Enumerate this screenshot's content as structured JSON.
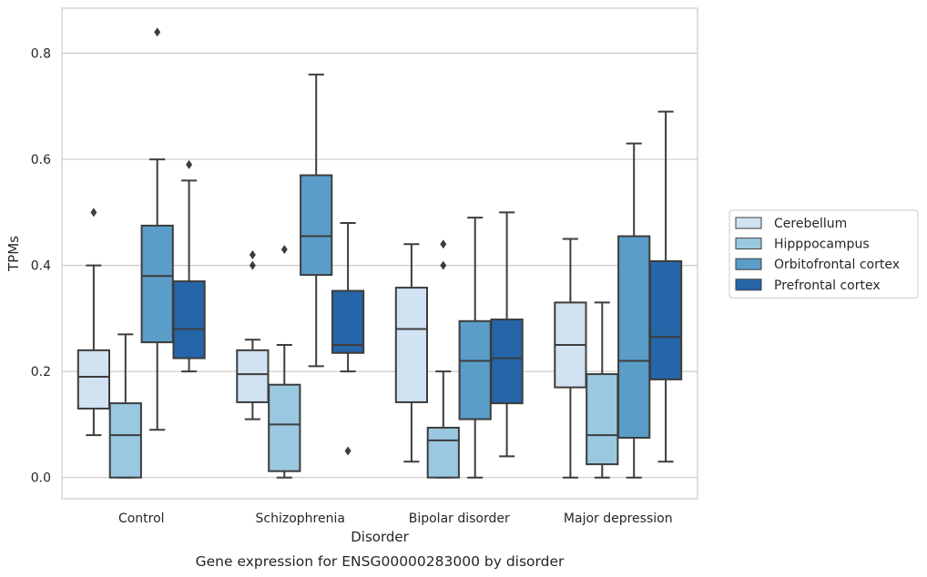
{
  "chart_data": {
    "type": "box",
    "title": "",
    "caption": "Gene expression for ENSG00000283000 by disorder",
    "xlabel": "Disorder",
    "ylabel": "TPMs",
    "ylim": [
      -0.04,
      0.885
    ],
    "yticks": [
      0.0,
      0.2,
      0.4,
      0.6,
      0.8
    ],
    "ytick_labels": [
      "0.0",
      "0.2",
      "0.4",
      "0.6",
      "0.8"
    ],
    "grid": "horizontal",
    "legend_position": "right",
    "categories": [
      "Control",
      "Schizophrenia",
      "Bipolar disorder",
      "Major depression"
    ],
    "series": [
      {
        "name": "Cerebellum",
        "color": "#d1e2f2",
        "boxes": [
          {
            "whisker_low": 0.08,
            "q1": 0.13,
            "median": 0.19,
            "q3": 0.24,
            "whisker_high": 0.4,
            "outliers": [
              0.5
            ]
          },
          {
            "whisker_low": 0.11,
            "q1": 0.142,
            "median": 0.195,
            "q3": 0.24,
            "whisker_high": 0.26,
            "outliers": [
              0.4,
              0.42
            ]
          },
          {
            "whisker_low": 0.03,
            "q1": 0.142,
            "median": 0.28,
            "q3": 0.358,
            "whisker_high": 0.44,
            "outliers": []
          },
          {
            "whisker_low": 0.0,
            "q1": 0.17,
            "median": 0.25,
            "q3": 0.33,
            "whisker_high": 0.45,
            "outliers": []
          }
        ]
      },
      {
        "name": "Hipppocampus",
        "color": "#9ac8e0",
        "boxes": [
          {
            "whisker_low": 0.0,
            "q1": 0.0,
            "median": 0.08,
            "q3": 0.14,
            "whisker_high": 0.27,
            "outliers": []
          },
          {
            "whisker_low": 0.0,
            "q1": 0.012,
            "median": 0.1,
            "q3": 0.175,
            "whisker_high": 0.25,
            "outliers": [
              0.43
            ]
          },
          {
            "whisker_low": 0.0,
            "q1": 0.0,
            "median": 0.07,
            "q3": 0.094,
            "whisker_high": 0.2,
            "outliers": [
              0.4,
              0.44
            ]
          },
          {
            "whisker_low": 0.0,
            "q1": 0.025,
            "median": 0.08,
            "q3": 0.195,
            "whisker_high": 0.33,
            "outliers": []
          }
        ]
      },
      {
        "name": "Orbitofrontal cortex",
        "color": "#5a9dc8",
        "boxes": [
          {
            "whisker_low": 0.09,
            "q1": 0.255,
            "median": 0.38,
            "q3": 0.475,
            "whisker_high": 0.6,
            "outliers": [
              0.84
            ]
          },
          {
            "whisker_low": 0.21,
            "q1": 0.382,
            "median": 0.455,
            "q3": 0.57,
            "whisker_high": 0.76,
            "outliers": []
          },
          {
            "whisker_low": 0.0,
            "q1": 0.11,
            "median": 0.22,
            "q3": 0.295,
            "whisker_high": 0.49,
            "outliers": []
          },
          {
            "whisker_low": 0.0,
            "q1": 0.075,
            "median": 0.22,
            "q3": 0.455,
            "whisker_high": 0.63,
            "outliers": []
          }
        ]
      },
      {
        "name": "Prefrontal cortex",
        "color": "#2565a8",
        "boxes": [
          {
            "whisker_low": 0.2,
            "q1": 0.225,
            "median": 0.28,
            "q3": 0.37,
            "whisker_high": 0.56,
            "outliers": [
              0.59
            ]
          },
          {
            "whisker_low": 0.2,
            "q1": 0.235,
            "median": 0.25,
            "q3": 0.352,
            "whisker_high": 0.48,
            "outliers": [
              0.05
            ]
          },
          {
            "whisker_low": 0.04,
            "q1": 0.14,
            "median": 0.225,
            "q3": 0.298,
            "whisker_high": 0.5,
            "outliers": []
          },
          {
            "whisker_low": 0.03,
            "q1": 0.185,
            "median": 0.265,
            "q3": 0.408,
            "whisker_high": 0.69,
            "outliers": []
          }
        ]
      }
    ]
  }
}
